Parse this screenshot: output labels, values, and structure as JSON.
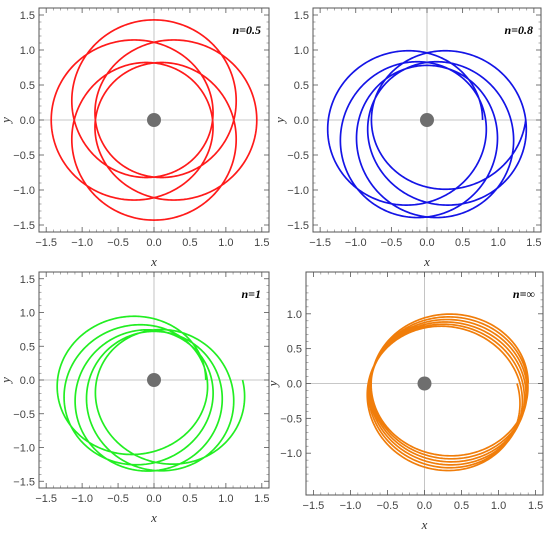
{
  "chart_data": [
    {
      "type": "line",
      "panel_label": "n=0.5",
      "xlabel": "x",
      "ylabel": "y",
      "xlim": [
        -1.6,
        1.6
      ],
      "ylim": [
        -1.6,
        1.6
      ],
      "x_ticks": [
        "-1.5",
        "-1.0",
        "-0.5",
        "0.0",
        "0.5",
        "1.0",
        "1.5"
      ],
      "y_ticks": [
        "-1.5",
        "-1.0",
        "-0.5",
        "0.0",
        "0.5",
        "1.0",
        "1.5"
      ],
      "color": "#ff1a1a",
      "central_body": {
        "x": 0,
        "y": 0
      },
      "orbit": {
        "start_r": 1.43,
        "start_angle_deg": 0,
        "r_min": 0.78,
        "r_max": 1.43,
        "turns": 5,
        "precession_deg_per_turn": 72,
        "direction": "counterclockwise"
      }
    },
    {
      "type": "line",
      "panel_label": "n=0.8",
      "xlabel": "x",
      "ylabel": "y",
      "xlim": [
        -1.6,
        1.6
      ],
      "ylim": [
        -1.6,
        1.6
      ],
      "x_ticks": [
        "-1.5",
        "-1.0",
        "-0.5",
        "0.0",
        "0.5",
        "1.0",
        "1.5"
      ],
      "y_ticks": [
        "-1.5",
        "-1.0",
        "-0.5",
        "0.0",
        "0.5",
        "1.0",
        "1.5"
      ],
      "color": "#1414e6",
      "central_body": {
        "x": 0,
        "y": 0
      },
      "orbit": {
        "start_r": 0.78,
        "start_angle_deg": 0,
        "r_min": 0.78,
        "r_max": 1.42,
        "turns": 5,
        "precession_deg_per_turn": 40,
        "direction": "counterclockwise"
      }
    },
    {
      "type": "line",
      "panel_label": "n=1",
      "xlabel": "x",
      "ylabel": "y",
      "xlim": [
        -1.6,
        1.6
      ],
      "ylim": [
        -1.6,
        1.6
      ],
      "x_ticks": [
        "-1.5",
        "-1.0",
        "-0.5",
        "0.0",
        "0.5",
        "1.0",
        "1.5"
      ],
      "y_ticks": [
        "-1.5",
        "-1.0",
        "-0.5",
        "0.0",
        "0.5",
        "1.0",
        "1.5"
      ],
      "color": "#22ee22",
      "central_body": {
        "x": 0,
        "y": 0
      },
      "orbit": {
        "start_r": 0.72,
        "start_angle_deg": 0,
        "r_min": 0.72,
        "r_max": 1.36,
        "turns": 5,
        "precession_deg_per_turn": 28,
        "direction": "counterclockwise"
      }
    },
    {
      "type": "line",
      "panel_label": "n=∞",
      "xlabel": "x",
      "ylabel": "y",
      "xlim": [
        -1.6,
        1.6
      ],
      "ylim": [
        -1.6,
        1.6
      ],
      "x_ticks": [
        "-1.5",
        "-1.0",
        "-0.5",
        "0.0",
        "0.5",
        "1.0",
        "1.5"
      ],
      "y_ticks": [
        "-1.0",
        "-0.5",
        "0.0",
        "0.5",
        "1.0"
      ],
      "color": "#f07d0a",
      "central_body": {
        "x": 0,
        "y": 0
      },
      "orbit": {
        "start_r": 1.18,
        "start_angle_deg": 0,
        "r_min": 0.72,
        "r_max": 1.4,
        "turns": 6,
        "precession_deg_per_turn": -7,
        "direction": "counterclockwise"
      }
    }
  ]
}
